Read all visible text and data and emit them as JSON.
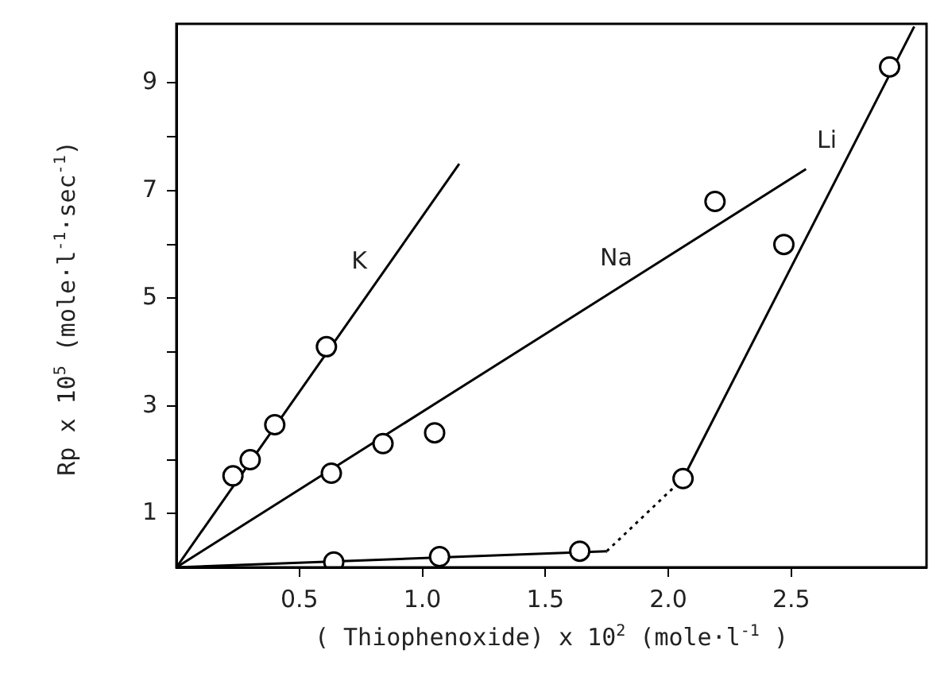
{
  "chart_data": {
    "type": "scatter",
    "xlabel": "( Thiophenoxide) x 10$^{2}$ (mole·l$^{-1}$ )",
    "ylabel": "Rp x 10$^{5}$ (mole·l$^{-1}$·sec$^{-1}$)",
    "xlim": [
      0,
      3.05
    ],
    "ylim": [
      0,
      10.1
    ],
    "xticks": [
      0.5,
      {
        "value": 1,
        "label": "1.0"
      },
      1.5,
      {
        "value": 2,
        "label": "2.0"
      },
      2.5
    ],
    "yticks": [
      1,
      {
        "value": 2,
        "label": null
      },
      3,
      {
        "value": 4,
        "label": null
      },
      5,
      {
        "value": 6,
        "label": null
      },
      7,
      {
        "value": 8,
        "label": null
      },
      9
    ],
    "grid": false,
    "legend": false,
    "marker": "circle",
    "series": [
      {
        "color": "#000000",
        "x": [
          0.23,
          0.3,
          0.4,
          0.61
        ],
        "values": [
          1.7,
          2.0,
          2.65,
          4.1
        ]
      },
      {
        "color": "#000000",
        "x": [
          0.63,
          0.84,
          1.05,
          2.19
        ],
        "values": [
          1.75,
          2.3,
          2.5,
          6.8
        ]
      },
      {
        "color": "#000000",
        "x": [
          0.64,
          1.07,
          1.64,
          2.06,
          2.47,
          2.9
        ],
        "values": [
          0.1,
          0.2,
          0.3,
          1.65,
          6.0,
          9.3
        ]
      },
      {
        "type": "line",
        "name": "K",
        "color": "#000000",
        "marker": "none",
        "line_style": "solid",
        "x": [
          0,
          1.15
        ],
        "values": [
          0,
          7.5
        ]
      },
      {
        "type": "line",
        "name": "Na",
        "color": "#000000",
        "marker": "none",
        "line_style": "solid",
        "x": [
          0,
          2.56
        ],
        "values": [
          0,
          7.4
        ]
      },
      {
        "type": "line",
        "color": "#000000",
        "marker": "none",
        "line_style": "solid",
        "x": [
          0,
          1.75
        ],
        "values": [
          0,
          0.3
        ]
      },
      {
        "type": "line",
        "color": "#000000",
        "marker": "none",
        "line_style": "dotted",
        "x": [
          1.75,
          2.06
        ],
        "values": [
          0.3,
          1.65
        ]
      },
      {
        "type": "line",
        "name": "Li",
        "color": "#000000",
        "marker": "none",
        "line_style": "solid",
        "x": [
          2.06,
          3.0
        ],
        "values": [
          1.65,
          10.05
        ]
      }
    ]
  }
}
